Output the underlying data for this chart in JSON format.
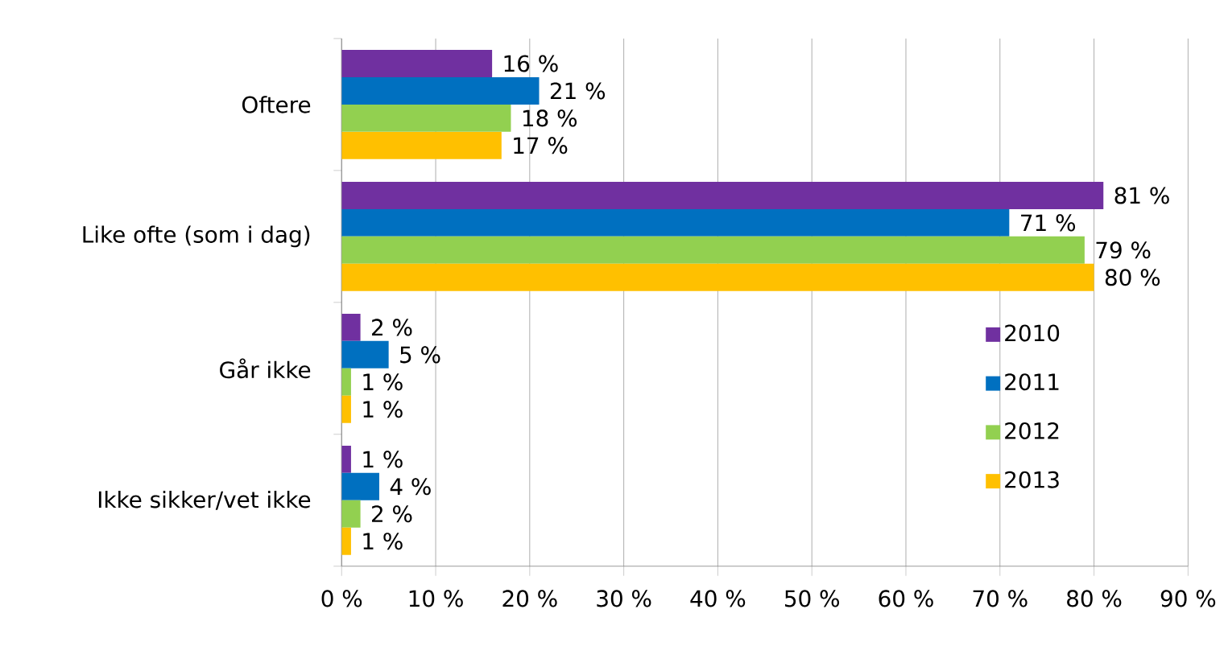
{
  "chart_data": {
    "type": "bar",
    "orientation": "horizontal",
    "categories": [
      "Oftere",
      "Like ofte (som i dag)",
      "Går ikke",
      "Ikke sikker/vet ikke"
    ],
    "series": [
      {
        "name": "2010",
        "color": "#7030a0",
        "values": [
          16,
          81,
          2,
          1
        ],
        "value_labels": [
          "16 %",
          "81 %",
          "2 %",
          "1 %"
        ]
      },
      {
        "name": "2011",
        "color": "#0070c0",
        "values": [
          21,
          71,
          5,
          4
        ],
        "value_labels": [
          "21 %",
          "71 %",
          "5 %",
          "4 %"
        ]
      },
      {
        "name": "2012",
        "color": "#92d050",
        "values": [
          18,
          79,
          1,
          2
        ],
        "value_labels": [
          "18 %",
          "79 %",
          "1 %",
          "2 %"
        ]
      },
      {
        "name": "2013",
        "color": "#ffc000",
        "values": [
          17,
          80,
          1,
          1
        ],
        "value_labels": [
          "17 %",
          "80 %",
          "1 %",
          "1 %"
        ]
      }
    ],
    "xlim": [
      0,
      90
    ],
    "xticks": [
      {
        "value": 0,
        "label": "0 %"
      },
      {
        "value": 10,
        "label": "10 %"
      },
      {
        "value": 20,
        "label": "20 %"
      },
      {
        "value": 30,
        "label": "30 %"
      },
      {
        "value": 40,
        "label": "40 %"
      },
      {
        "value": 50,
        "label": "50 %"
      },
      {
        "value": 60,
        "label": "60 %"
      },
      {
        "value": 70,
        "label": "70 %"
      },
      {
        "value": 80,
        "label": "80 %"
      },
      {
        "value": 90,
        "label": "90 %"
      }
    ],
    "grid": "x",
    "legend": "right"
  }
}
